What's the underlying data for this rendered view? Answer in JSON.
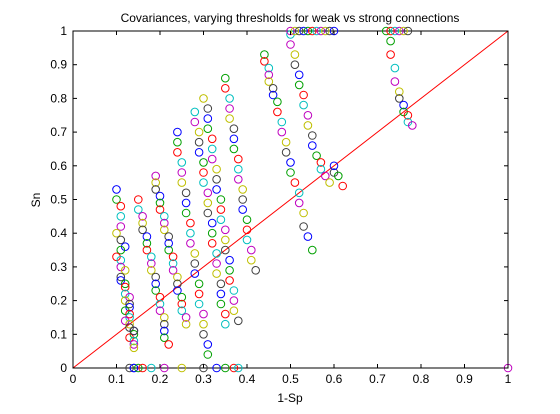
{
  "chart_data": {
    "type": "scatter",
    "title": "Covariances, varying thresholds for weak vs strong connections",
    "xlabel": "1-Sp",
    "ylabel": "Sn",
    "xlim": [
      0,
      1
    ],
    "ylim": [
      0,
      1
    ],
    "xticks": [
      "0",
      "0.1",
      "0.2",
      "0.3",
      "0.4",
      "0.5",
      "0.6",
      "0.7",
      "0.8",
      "0.9",
      "1"
    ],
    "yticks": [
      "0",
      "0.1",
      "0.2",
      "0.3",
      "0.4",
      "0.5",
      "0.6",
      "0.7",
      "0.8",
      "0.9",
      "1"
    ],
    "grid": false,
    "legend": "none",
    "marker": "open-circle",
    "colors": [
      "#0000ff",
      "#00a000",
      "#ff0000",
      "#00bfbf",
      "#bf00bf",
      "#bfbf00",
      "#404040"
    ],
    "reference_line": {
      "from": [
        0,
        0
      ],
      "to": [
        1,
        1
      ],
      "color": "#ff0000"
    },
    "series": [
      {
        "x": [
          0.1,
          0.1,
          0.11,
          0.11,
          0.11,
          0.1,
          0.11,
          0.12,
          0.11,
          0.1,
          0.11,
          0.11,
          0.12,
          0.11,
          0.11,
          0.12,
          0.12,
          0.12,
          0.13,
          0.12,
          0.13,
          0.13,
          0.12,
          0.13,
          0.13,
          0.12,
          0.13,
          0.13,
          0.14,
          0.14,
          0.13,
          0.14,
          0.14,
          0.14,
          0.14,
          0.14
        ],
        "y": [
          0.53,
          0.5,
          0.48,
          0.45,
          0.42,
          0.4,
          0.38,
          0.36,
          0.35,
          0.33,
          0.32,
          0.3,
          0.29,
          0.27,
          0.26,
          0.25,
          0.24,
          0.22,
          0.21,
          0.2,
          0.19,
          0.18,
          0.17,
          0.16,
          0.15,
          0.14,
          0.13,
          0.12,
          0.11,
          0.1,
          0.09,
          0.08,
          0.07,
          0.06,
          0.11,
          0.0
        ]
      },
      {
        "x": [
          0.15,
          0.15,
          0.16,
          0.16,
          0.16,
          0.17,
          0.17,
          0.17,
          0.18,
          0.18,
          0.18,
          0.19,
          0.19,
          0.19,
          0.2,
          0.2,
          0.2,
          0.21,
          0.21,
          0.21,
          0.21,
          0.22
        ],
        "y": [
          0.5,
          0.47,
          0.45,
          0.43,
          0.41,
          0.39,
          0.37,
          0.35,
          0.33,
          0.31,
          0.29,
          0.27,
          0.25,
          0.23,
          0.21,
          0.19,
          0.17,
          0.15,
          0.13,
          0.11,
          0.09,
          0.07
        ]
      },
      {
        "x": [
          0.19,
          0.19,
          0.19,
          0.2,
          0.2,
          0.2,
          0.21,
          0.21,
          0.21,
          0.22,
          0.22,
          0.22,
          0.23,
          0.23,
          0.23,
          0.24,
          0.24,
          0.24,
          0.25,
          0.25,
          0.25,
          0.26,
          0.26
        ],
        "y": [
          0.57,
          0.55,
          0.53,
          0.51,
          0.49,
          0.47,
          0.45,
          0.43,
          0.41,
          0.39,
          0.37,
          0.35,
          0.33,
          0.31,
          0.29,
          0.27,
          0.25,
          0.23,
          0.21,
          0.19,
          0.17,
          0.15,
          0.13
        ]
      },
      {
        "x": [
          0.24,
          0.24,
          0.24,
          0.25,
          0.25,
          0.25,
          0.26,
          0.26,
          0.26,
          0.27,
          0.27,
          0.27,
          0.28,
          0.28,
          0.28,
          0.29,
          0.29,
          0.29,
          0.3,
          0.3,
          0.3,
          0.31,
          0.31
        ],
        "y": [
          0.7,
          0.67,
          0.64,
          0.61,
          0.58,
          0.55,
          0.52,
          0.49,
          0.46,
          0.43,
          0.4,
          0.37,
          0.34,
          0.31,
          0.28,
          0.25,
          0.22,
          0.19,
          0.16,
          0.13,
          0.1,
          0.07,
          0.04
        ]
      },
      {
        "x": [
          0.28,
          0.28,
          0.29,
          0.29,
          0.29,
          0.3,
          0.3,
          0.3,
          0.31,
          0.31,
          0.31,
          0.32,
          0.32,
          0.32,
          0.33,
          0.33,
          0.33,
          0.34,
          0.34,
          0.34,
          0.35,
          0.35
        ],
        "y": [
          0.76,
          0.73,
          0.7,
          0.67,
          0.64,
          0.61,
          0.58,
          0.55,
          0.52,
          0.49,
          0.46,
          0.43,
          0.4,
          0.37,
          0.34,
          0.31,
          0.28,
          0.25,
          0.22,
          0.19,
          0.16,
          0.13
        ]
      },
      {
        "x": [
          0.3,
          0.31,
          0.31,
          0.31,
          0.32,
          0.32,
          0.32,
          0.33,
          0.33,
          0.33,
          0.34,
          0.34,
          0.34,
          0.35,
          0.35,
          0.35,
          0.36,
          0.36,
          0.36,
          0.37,
          0.37,
          0.37,
          0.38
        ],
        "y": [
          0.8,
          0.77,
          0.74,
          0.71,
          0.68,
          0.65,
          0.62,
          0.59,
          0.56,
          0.53,
          0.5,
          0.47,
          0.44,
          0.41,
          0.38,
          0.35,
          0.32,
          0.29,
          0.26,
          0.23,
          0.2,
          0.17,
          0.14
        ]
      },
      {
        "x": [
          0.35,
          0.35,
          0.36,
          0.36,
          0.36,
          0.37,
          0.37,
          0.37,
          0.38,
          0.38,
          0.38,
          0.39,
          0.39,
          0.39,
          0.4,
          0.4,
          0.4,
          0.41,
          0.41,
          0.42
        ],
        "y": [
          0.86,
          0.83,
          0.8,
          0.77,
          0.74,
          0.71,
          0.68,
          0.65,
          0.62,
          0.59,
          0.56,
          0.53,
          0.5,
          0.47,
          0.44,
          0.41,
          0.38,
          0.35,
          0.32,
          0.29
        ]
      },
      {
        "x": [
          0.44,
          0.44,
          0.45,
          0.45,
          0.45,
          0.46,
          0.46,
          0.47,
          0.47,
          0.48,
          0.48,
          0.49,
          0.49,
          0.5,
          0.5,
          0.51,
          0.52,
          0.52,
          0.53,
          0.53,
          0.54,
          0.55
        ],
        "y": [
          0.93,
          0.91,
          0.89,
          0.87,
          0.85,
          0.83,
          0.81,
          0.79,
          0.76,
          0.73,
          0.7,
          0.67,
          0.64,
          0.61,
          0.58,
          0.55,
          0.52,
          0.49,
          0.46,
          0.42,
          0.39,
          0.35
        ]
      },
      {
        "x": [
          0.5,
          0.5,
          0.51,
          0.51,
          0.52,
          0.52,
          0.53,
          0.53,
          0.54,
          0.54,
          0.55,
          0.55,
          0.56,
          0.57,
          0.57,
          0.58,
          0.59,
          0.6,
          0.6,
          0.61,
          0.62
        ],
        "y": [
          0.99,
          0.96,
          0.93,
          0.9,
          0.87,
          0.84,
          0.81,
          0.78,
          0.75,
          0.72,
          0.69,
          0.66,
          0.63,
          0.61,
          0.59,
          0.57,
          0.55,
          0.58,
          0.6,
          0.57,
          0.54
        ]
      },
      {
        "x": [
          0.5,
          0.51,
          0.52,
          0.53,
          0.54,
          0.55,
          0.56,
          0.57,
          0.58,
          0.59,
          0.6,
          0.72,
          0.73,
          0.74,
          0.75,
          0.76,
          0.77
        ],
        "y": [
          1.0,
          1.0,
          1.0,
          1.0,
          1.0,
          1.0,
          1.0,
          1.0,
          1.0,
          1.0,
          1.0,
          1.0,
          1.0,
          1.0,
          1.0,
          1.0,
          1.0
        ]
      },
      {
        "x": [
          0.73,
          0.73,
          0.74,
          0.74,
          0.75,
          0.75,
          0.76,
          0.76,
          0.77,
          0.77,
          0.78
        ],
        "y": [
          0.97,
          0.93,
          0.89,
          0.85,
          0.82,
          0.8,
          0.78,
          0.76,
          0.75,
          0.73,
          0.72
        ]
      },
      {
        "x": [
          0.13,
          0.14,
          0.15,
          0.16,
          0.18,
          0.21,
          0.25,
          0.3,
          0.33,
          0.35,
          0.37,
          0.38,
          1.0
        ],
        "y": [
          0.0,
          0.0,
          0.0,
          0.0,
          0.0,
          0.0,
          0.0,
          0.0,
          0.0,
          0.0,
          0.0,
          0.0,
          0.0
        ]
      }
    ]
  }
}
